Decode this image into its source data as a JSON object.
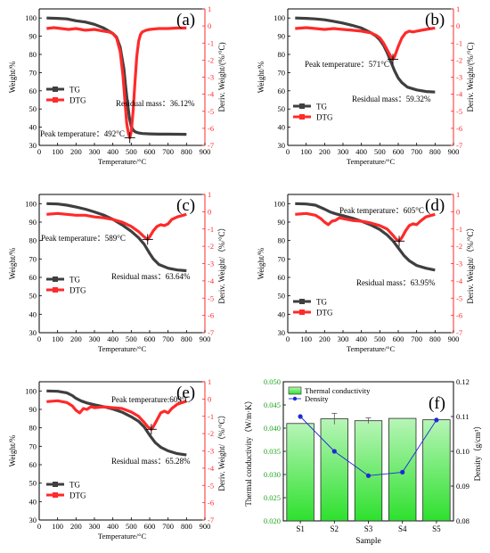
{
  "colors": {
    "tg": "#3f3f3f",
    "dtg": "#ff2a2a",
    "dtg_axis": "#ff2a2a",
    "bar_top": "#b7f5b7",
    "bar_bottom": "#2ee02e",
    "density": "#1d2bd6",
    "axis": "#000000"
  },
  "chart_data": [
    {
      "type": "line",
      "panel_label": "(a)",
      "xlabel": "Temperature/°C",
      "ylabel": "Weight/%",
      "y2label": "Deriv. Weight/(%/°C)",
      "xlim": [
        0,
        900
      ],
      "ylim": [
        30,
        105
      ],
      "y2lim": [
        -7,
        1
      ],
      "xticks": [
        "0",
        "100",
        "200",
        "300",
        "400",
        "500",
        "600",
        "700",
        "800",
        "900"
      ],
      "yticks": [
        "30",
        "40",
        "50",
        "60",
        "70",
        "80",
        "90",
        "100"
      ],
      "y2ticks": [
        "1",
        "0",
        "-1",
        "-2",
        "-3",
        "-4",
        "-5",
        "-6",
        "-7"
      ],
      "legend": {
        "position": "middle-left",
        "entries": [
          "TG",
          "DTG"
        ]
      },
      "series": [
        {
          "name": "TG",
          "x": [
            40,
            100,
            150,
            200,
            250,
            300,
            350,
            400,
            420,
            440,
            460,
            470,
            480,
            490,
            500,
            510,
            520,
            540,
            560,
            600,
            650,
            700,
            750,
            800
          ],
          "y": [
            100,
            99.8,
            99.5,
            98.5,
            97.8,
            96.5,
            94.5,
            91.5,
            89.5,
            84,
            72,
            62,
            53,
            45,
            40.5,
            38.5,
            37.5,
            36.8,
            36.5,
            36.3,
            36.2,
            36.2,
            36.12,
            36.1
          ]
        },
        {
          "name": "DTG",
          "x": [
            40,
            80,
            120,
            160,
            200,
            250,
            300,
            350,
            380,
            400,
            420,
            440,
            455,
            465,
            475,
            485,
            492,
            500,
            510,
            520,
            530,
            540,
            550,
            560,
            580,
            600,
            650,
            700,
            750,
            800
          ],
          "y": [
            -0.15,
            -0.1,
            -0.15,
            -0.2,
            -0.15,
            -0.25,
            -0.2,
            -0.3,
            -0.35,
            -0.45,
            -0.7,
            -1.5,
            -2.9,
            -4.3,
            -5.7,
            -6.3,
            -6.55,
            -6.2,
            -5,
            -3.3,
            -1.8,
            -0.9,
            -0.5,
            -0.35,
            -0.25,
            -0.2,
            -0.15,
            -0.15,
            -0.12,
            -0.12
          ]
        }
      ],
      "annotations": [
        {
          "text": "Residual mass：36.12%"
        },
        {
          "text": "Peak temperature：492°C"
        }
      ],
      "peak": {
        "x": 492,
        "y2": -6.55
      }
    },
    {
      "type": "line",
      "panel_label": "(b)",
      "xlabel": "Temperature/°C",
      "ylabel": "Weight/%",
      "y2label": "Deriv. Weight/(%/°C)",
      "xlim": [
        0,
        900
      ],
      "ylim": [
        30,
        105
      ],
      "y2lim": [
        -7,
        1
      ],
      "xticks": [
        "0",
        "100",
        "200",
        "300",
        "400",
        "500",
        "600",
        "700",
        "800",
        "900"
      ],
      "yticks": [
        "30",
        "40",
        "50",
        "60",
        "70",
        "80",
        "90",
        "100"
      ],
      "y2ticks": [
        "1",
        "0",
        "-1",
        "-2",
        "-3",
        "-4",
        "-5",
        "-6",
        "-7"
      ],
      "legend": {
        "position": "bottom-left",
        "entries": [
          "TG",
          "DTG"
        ]
      },
      "series": [
        {
          "name": "TG",
          "x": [
            40,
            100,
            150,
            200,
            250,
            300,
            350,
            400,
            450,
            480,
            500,
            520,
            540,
            560,
            580,
            600,
            620,
            650,
            700,
            750,
            800
          ],
          "y": [
            100,
            99.8,
            99.5,
            99,
            98.2,
            97.2,
            96,
            94.5,
            92,
            90,
            88,
            85,
            81,
            76,
            71,
            67,
            64.5,
            62,
            60.5,
            59.6,
            59.32
          ]
        },
        {
          "name": "DTG",
          "x": [
            40,
            100,
            150,
            200,
            250,
            300,
            350,
            400,
            450,
            480,
            500,
            520,
            540,
            560,
            571,
            580,
            600,
            620,
            640,
            660,
            680,
            700,
            750,
            800
          ],
          "y": [
            -0.15,
            -0.1,
            -0.15,
            -0.2,
            -0.15,
            -0.2,
            -0.25,
            -0.3,
            -0.4,
            -0.55,
            -0.7,
            -1,
            -1.4,
            -1.8,
            -1.95,
            -1.8,
            -1.2,
            -0.7,
            -0.4,
            -0.3,
            -0.35,
            -0.3,
            -0.2,
            -0.12
          ]
        }
      ],
      "annotations": [
        {
          "text": "Peak temperature：571°C"
        },
        {
          "text": "Residual mass：59.32%"
        }
      ],
      "peak": {
        "x": 571,
        "y2": -1.95
      }
    },
    {
      "type": "line",
      "panel_label": "(c)",
      "xlabel": "Temperature/°C",
      "ylabel": "Weight/%",
      "y2label": "Deriv. Weight/（%/°C）",
      "xlim": [
        0,
        900
      ],
      "ylim": [
        30,
        105
      ],
      "y2lim": [
        -7,
        1
      ],
      "xticks": [
        "0",
        "100",
        "200",
        "300",
        "400",
        "500",
        "600",
        "700",
        "800",
        "900"
      ],
      "yticks": [
        "30",
        "40",
        "50",
        "60",
        "70",
        "80",
        "90",
        "100"
      ],
      "y2ticks": [
        "1",
        "0",
        "-1",
        "-2",
        "-3",
        "-4",
        "-5",
        "-6",
        "-7"
      ],
      "legend": {
        "position": "bottom-left",
        "entries": [
          "TG",
          "DTG"
        ]
      },
      "series": [
        {
          "name": "TG",
          "x": [
            40,
            100,
            150,
            200,
            250,
            300,
            350,
            400,
            450,
            500,
            540,
            570,
            600,
            620,
            650,
            700,
            750,
            800
          ],
          "y": [
            100,
            99.8,
            99.2,
            98.2,
            97,
            95.5,
            93.8,
            91.5,
            88.5,
            85,
            81.5,
            78,
            73,
            70,
            67,
            65,
            64,
            63.64
          ]
        },
        {
          "name": "DTG",
          "x": [
            40,
            100,
            150,
            200,
            250,
            300,
            350,
            400,
            450,
            500,
            540,
            570,
            589,
            600,
            620,
            640,
            660,
            680,
            700,
            720,
            750,
            800
          ],
          "y": [
            -0.15,
            -0.1,
            -0.15,
            -0.2,
            -0.2,
            -0.3,
            -0.35,
            -0.45,
            -0.6,
            -0.85,
            -1.15,
            -1.45,
            -1.6,
            -1.45,
            -1.1,
            -0.85,
            -0.75,
            -0.8,
            -0.7,
            -0.45,
            -0.3,
            -0.15
          ]
        }
      ],
      "annotations": [
        {
          "text": "Peak temperature：589°C"
        },
        {
          "text": "Residual mass：63.64%"
        }
      ],
      "peak": {
        "x": 589,
        "y2": -1.6
      }
    },
    {
      "type": "line",
      "panel_label": "(d)",
      "xlabel": "Temperature/°C",
      "ylabel": "Weight/%",
      "y2label": "Deriv. Weight/（%/°C）",
      "xlim": [
        0,
        900
      ],
      "ylim": [
        30,
        105
      ],
      "y2lim": [
        -7,
        1
      ],
      "xticks": [
        "0",
        "100",
        "200",
        "300",
        "400",
        "500",
        "600",
        "700",
        "800",
        "900"
      ],
      "yticks": [
        "30",
        "40",
        "50",
        "60",
        "70",
        "80",
        "90",
        "100"
      ],
      "y2ticks": [
        "1",
        "0",
        "-1",
        "-2",
        "-3",
        "-4",
        "-5",
        "-6",
        "-7"
      ],
      "legend": {
        "position": "bottom-left",
        "entries": [
          "TG",
          "DTG"
        ]
      },
      "series": [
        {
          "name": "TG",
          "x": [
            40,
            100,
            150,
            200,
            230,
            260,
            300,
            350,
            400,
            450,
            500,
            540,
            570,
            600,
            630,
            660,
            700,
            750,
            800
          ],
          "y": [
            100,
            99.8,
            99.2,
            97,
            95.5,
            94.5,
            93.5,
            92.2,
            90.5,
            88.5,
            86,
            83,
            80,
            76,
            72,
            69,
            66.5,
            65,
            63.95
          ]
        },
        {
          "name": "DTG",
          "x": [
            40,
            100,
            150,
            180,
            200,
            220,
            240,
            260,
            280,
            300,
            350,
            400,
            450,
            500,
            540,
            570,
            590,
            605,
            620,
            640,
            660,
            680,
            700,
            720,
            750,
            800
          ],
          "y": [
            -0.15,
            -0.1,
            -0.2,
            -0.4,
            -0.6,
            -0.75,
            -0.55,
            -0.5,
            -0.35,
            -0.4,
            -0.5,
            -0.55,
            -0.65,
            -0.8,
            -1,
            -1.35,
            -1.6,
            -1.7,
            -1.5,
            -1.1,
            -0.8,
            -0.7,
            -0.75,
            -0.55,
            -0.3,
            -0.15
          ]
        }
      ],
      "annotations": [
        {
          "text": "Peak temperature：605°C"
        },
        {
          "text": "Residual mass：63.95%"
        }
      ],
      "peak": {
        "x": 605,
        "y2": -1.7
      }
    },
    {
      "type": "line",
      "panel_label": "(e)",
      "xlabel": "Temperature/°C",
      "ylabel": "Weight/%",
      "y2label": "Deriv. Weight/（%/°C）",
      "xlim": [
        0,
        900
      ],
      "ylim": [
        30,
        105
      ],
      "y2lim": [
        -7,
        1
      ],
      "xticks": [
        "0",
        "100",
        "200",
        "300",
        "400",
        "500",
        "600",
        "700",
        "800",
        "900"
      ],
      "yticks": [
        "30",
        "40",
        "50",
        "60",
        "70",
        "80",
        "90",
        "100"
      ],
      "y2ticks": [
        "1",
        "0",
        "-1",
        "-2",
        "-3",
        "-4",
        "-5",
        "-6",
        "-7"
      ],
      "legend": {
        "position": "bottom-left",
        "entries": [
          "TG",
          "DTG"
        ]
      },
      "series": [
        {
          "name": "TG",
          "x": [
            40,
            100,
            150,
            180,
            200,
            230,
            260,
            300,
            350,
            400,
            450,
            500,
            540,
            570,
            600,
            630,
            660,
            700,
            750,
            800
          ],
          "y": [
            100,
            99.8,
            99,
            97.5,
            96,
            94.5,
            93.5,
            92.5,
            91.5,
            90.2,
            88.5,
            86,
            83.5,
            80.5,
            76,
            72,
            69.5,
            67.5,
            66,
            65.28
          ]
        },
        {
          "name": "DTG",
          "x": [
            40,
            100,
            150,
            180,
            200,
            220,
            240,
            260,
            280,
            300,
            350,
            400,
            450,
            500,
            540,
            570,
            590,
            609,
            620,
            640,
            660,
            680,
            700,
            720,
            750,
            800
          ],
          "y": [
            -0.15,
            -0.1,
            -0.2,
            -0.4,
            -0.65,
            -0.8,
            -0.55,
            -0.6,
            -0.45,
            -0.5,
            -0.45,
            -0.5,
            -0.55,
            -0.75,
            -1,
            -1.35,
            -1.6,
            -1.75,
            -1.6,
            -1.2,
            -0.8,
            -0.7,
            -0.8,
            -0.55,
            -0.3,
            -0.12
          ]
        }
      ],
      "annotations": [
        {
          "text": "Peak temperature:609°C"
        },
        {
          "text": "Residual mass：65.28%"
        }
      ],
      "peak": {
        "x": 609,
        "y2": -1.75
      }
    },
    {
      "type": "bar",
      "panel_label": "(f)",
      "xlabel": "Sample",
      "ylabel": "Thermal conductivity（W/m·K）",
      "y2label": "Density（g/cm³）",
      "categories": [
        "S1",
        "S2",
        "S3",
        "S4",
        "S5"
      ],
      "ylim": [
        0.02,
        0.05
      ],
      "y2lim": [
        0.08,
        0.12
      ],
      "yticks": [
        "0.020",
        "0.025",
        "0.030",
        "0.035",
        "0.040",
        "0.045",
        "0.050"
      ],
      "y2ticks": [
        "0.08",
        "0.09",
        "0.10",
        "0.11",
        "0.12"
      ],
      "legend": {
        "position": "top-left",
        "entries": [
          "Thermal conductivity",
          "Density"
        ]
      },
      "series": [
        {
          "name": "Thermal conductivity",
          "values": [
            0.041,
            0.042,
            0.0416,
            0.0421,
            0.0418
          ],
          "error": [
            0,
            0.0012,
            0.0006,
            0,
            0
          ]
        },
        {
          "name": "Density",
          "values": [
            0.11,
            0.1,
            0.093,
            0.094,
            0.109
          ]
        }
      ]
    }
  ]
}
